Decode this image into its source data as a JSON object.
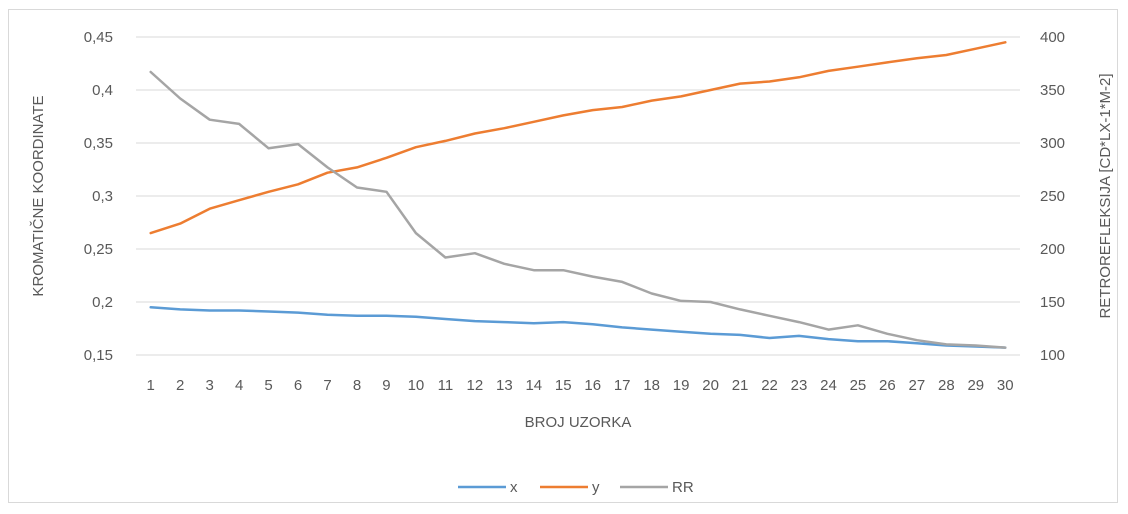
{
  "chart_data": {
    "type": "line",
    "title": "",
    "xlabel": "BROJ UZORKA",
    "ylabel": "KROMATIČNE KOORDINATE",
    "y2label": "RETROREFLEKSIJA [CD*LX-1*M-2]",
    "categories": [
      "1",
      "2",
      "3",
      "4",
      "5",
      "6",
      "7",
      "8",
      "9",
      "10",
      "11",
      "12",
      "13",
      "14",
      "15",
      "16",
      "17",
      "18",
      "19",
      "20",
      "21",
      "22",
      "23",
      "24",
      "25",
      "26",
      "27",
      "28",
      "29",
      "30"
    ],
    "ylim": [
      0.15,
      0.45
    ],
    "y_ticks": [
      "0,15",
      "0,2",
      "0,25",
      "0,3",
      "0,35",
      "0,4",
      "0,45"
    ],
    "y_tick_values": [
      0.15,
      0.2,
      0.25,
      0.3,
      0.35,
      0.4,
      0.45
    ],
    "y2lim": [
      100,
      400
    ],
    "y2_ticks": [
      "100",
      "150",
      "200",
      "250",
      "300",
      "350",
      "400"
    ],
    "y2_tick_values": [
      100,
      150,
      200,
      250,
      300,
      350,
      400
    ],
    "grid": true,
    "legend_position": "bottom",
    "series": [
      {
        "name": "x",
        "axis": "left",
        "color": "#5b9bd5",
        "values": [
          0.195,
          0.193,
          0.192,
          0.192,
          0.191,
          0.19,
          0.188,
          0.187,
          0.187,
          0.186,
          0.184,
          0.182,
          0.181,
          0.18,
          0.181,
          0.179,
          0.176,
          0.174,
          0.172,
          0.17,
          0.169,
          0.166,
          0.168,
          0.165,
          0.163,
          0.163,
          0.161,
          0.159,
          0.158,
          0.157
        ]
      },
      {
        "name": "y",
        "axis": "left",
        "color": "#ed7d31",
        "values": [
          0.265,
          0.274,
          0.288,
          0.296,
          0.304,
          0.311,
          0.322,
          0.327,
          0.336,
          0.346,
          0.352,
          0.359,
          0.364,
          0.37,
          0.376,
          0.381,
          0.384,
          0.39,
          0.394,
          0.4,
          0.406,
          0.408,
          0.412,
          0.418,
          0.422,
          0.426,
          0.43,
          0.433,
          0.439,
          0.445
        ]
      },
      {
        "name": "RR",
        "axis": "right",
        "color": "#a5a5a5",
        "values": [
          367,
          342,
          322,
          318,
          295,
          299,
          277,
          258,
          254,
          215,
          192,
          196,
          186,
          180,
          180,
          174,
          169,
          158,
          151,
          150,
          143,
          137,
          131,
          124,
          128,
          120,
          114,
          110,
          109,
          107
        ]
      }
    ]
  }
}
